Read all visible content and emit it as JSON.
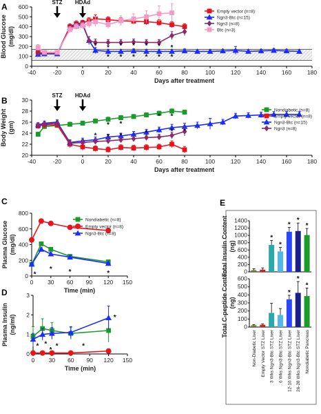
{
  "chart_data": [
    {
      "panel": "A",
      "type": "line",
      "xlabel": "Days after treatment",
      "ylabel": "Blood Glucose (mg/dl)",
      "xlim": [
        -40,
        180
      ],
      "ylim": [
        0,
        600
      ],
      "xticks": [
        -40,
        -20,
        0,
        20,
        40,
        60,
        80,
        100,
        120,
        140,
        160,
        180
      ],
      "yticks": [
        0,
        100,
        200,
        300,
        400,
        500,
        600
      ],
      "annotations": [
        {
          "label": "STZ",
          "x": -20
        },
        {
          "label": "HDAd",
          "x": 0
        }
      ],
      "reference_lines_y": [
        60,
        170
      ],
      "legend_position": "top-right",
      "stars": [
        {
          "x": 10,
          "y": 215
        },
        {
          "x": 20,
          "y": 195
        },
        {
          "x": 30,
          "y": 215
        },
        {
          "x": 40,
          "y": 215
        },
        {
          "x": 50,
          "y": 215
        },
        {
          "x": 60,
          "y": 210
        },
        {
          "x": 70,
          "y": 195
        },
        {
          "x": 20,
          "y": 100
        },
        {
          "x": 30,
          "y": 100
        },
        {
          "x": 40,
          "y": 100
        },
        {
          "x": 50,
          "y": 100
        },
        {
          "x": 60,
          "y": 100
        },
        {
          "x": 70,
          "y": 100
        }
      ],
      "series": [
        {
          "name": "Empty vector (n=8)",
          "color": "#e8141c",
          "marker": "square",
          "x": [
            -35,
            -30,
            -20,
            -10,
            -5,
            0,
            5,
            10,
            20,
            30,
            40,
            50,
            60,
            70,
            80
          ],
          "y": [
            140,
            130,
            130,
            400,
            430,
            440,
            460,
            480,
            470,
            460,
            455,
            450,
            440,
            420,
            400
          ],
          "err": [
            20,
            15,
            15,
            30,
            30,
            25,
            30,
            40,
            30,
            30,
            30,
            30,
            30,
            30,
            30
          ]
        },
        {
          "name": "Ngn3-Btc (n=15)",
          "color": "#1a2cff",
          "marker": "triangle",
          "x": [
            -35,
            -30,
            -20,
            -10,
            -5,
            0,
            5,
            10,
            20,
            30,
            40,
            50,
            60,
            70,
            80,
            90,
            100,
            110,
            120,
            130,
            140,
            150,
            160,
            170
          ],
          "y": [
            120,
            125,
            125,
            390,
            410,
            420,
            260,
            160,
            150,
            150,
            155,
            150,
            150,
            150,
            155,
            150,
            150,
            155,
            160,
            150,
            155,
            160,
            155,
            150
          ],
          "err": [
            15,
            15,
            15,
            30,
            30,
            25,
            40,
            30,
            20,
            20,
            20,
            20,
            20,
            20,
            20,
            15,
            15,
            15,
            40,
            15,
            15,
            20,
            15,
            15
          ]
        },
        {
          "name": "Ngn3 (n=8)",
          "color": "#8b2a6b",
          "marker": "diamond",
          "x": [
            -35,
            -30,
            -20,
            -10,
            -5,
            0,
            5,
            10,
            20,
            30,
            40,
            50,
            60,
            70,
            80
          ],
          "y": [
            130,
            130,
            130,
            390,
            420,
            430,
            260,
            240,
            240,
            240,
            245,
            240,
            240,
            310,
            350
          ],
          "err": [
            15,
            15,
            15,
            30,
            30,
            25,
            40,
            35,
            30,
            30,
            30,
            30,
            30,
            40,
            40
          ]
        },
        {
          "name": "Btc (n=3)",
          "color": "#f49ac8",
          "marker": "square",
          "x": [
            -35,
            -30,
            -20,
            -10,
            -5,
            0,
            5,
            10,
            20,
            30,
            40,
            50,
            60,
            70
          ],
          "y": [
            190,
            140,
            140,
            370,
            400,
            410,
            430,
            450,
            420,
            460,
            480,
            500,
            530,
            540
          ],
          "err": [
            30,
            20,
            20,
            30,
            30,
            30,
            40,
            50,
            40,
            50,
            50,
            60,
            80,
            90
          ]
        }
      ]
    },
    {
      "panel": "B",
      "type": "line",
      "xlabel": "Days after treatment",
      "ylabel": "Body Weight (gm)",
      "xlim": [
        -40,
        180
      ],
      "ylim": [
        20,
        30
      ],
      "xticks": [
        -40,
        -20,
        0,
        20,
        40,
        60,
        80,
        100,
        120,
        140,
        160,
        180
      ],
      "yticks": [
        20,
        22,
        24,
        26,
        28,
        30
      ],
      "annotations": [
        {
          "label": "STZ",
          "x": -20
        },
        {
          "label": "HDAd",
          "x": 0
        }
      ],
      "legend_position": "right",
      "stars": [
        {
          "x": 10,
          "y": 23.7
        },
        {
          "x": 20,
          "y": 23.5
        },
        {
          "x": 30,
          "y": 23.7
        },
        {
          "x": 50,
          "y": 24.2
        },
        {
          "x": 70,
          "y": 24.5
        },
        {
          "x": 80,
          "y": 24.5
        },
        {
          "x": 20,
          "y": 25.6
        },
        {
          "x": 30,
          "y": 25.8
        },
        {
          "x": 60,
          "y": 27.2
        },
        {
          "x": 70,
          "y": 27.2
        }
      ],
      "series": [
        {
          "name": "Nondiabetic (n=8)",
          "color": "#1a9a2a",
          "marker": "square",
          "x": [
            -35,
            -30,
            -20,
            -10,
            0,
            10,
            20,
            30,
            40,
            50,
            60,
            70,
            80
          ],
          "y": [
            23.8,
            25.2,
            25.4,
            25.6,
            25.8,
            26.2,
            26.5,
            26.8,
            27,
            27.3,
            27.6,
            28,
            27.8
          ],
          "err": [
            0.4,
            0.4,
            0.4,
            0.4,
            0.4,
            0.4,
            0.4,
            0.4,
            0.4,
            0.4,
            0.4,
            0.4,
            0.4
          ]
        },
        {
          "name": "Empty vector (n=8)",
          "color": "#e8141c",
          "marker": "square",
          "x": [
            -35,
            -30,
            -20,
            -10,
            0,
            10,
            20,
            30,
            40,
            50,
            60,
            70,
            80
          ],
          "y": [
            25.3,
            25.5,
            25.5,
            22,
            21.5,
            21.2,
            21,
            21.4,
            21.3,
            21.4,
            21.5,
            22,
            21
          ],
          "err": [
            0.5,
            0.5,
            0.5,
            0.6,
            0.6,
            0.5,
            0.5,
            0.5,
            0.5,
            0.5,
            0.5,
            0.6,
            0.6
          ]
        },
        {
          "name": "Ngn3-Btc (n=15)",
          "color": "#1a2cff",
          "marker": "triangle",
          "x": [
            -35,
            -30,
            -20,
            -10,
            0,
            10,
            20,
            30,
            40,
            50,
            60,
            70,
            80,
            90,
            100,
            110,
            120,
            130,
            140,
            150,
            160,
            170
          ],
          "y": [
            25.5,
            25.8,
            26,
            22.3,
            22.6,
            22.8,
            23.3,
            23.5,
            23.8,
            24.2,
            24.6,
            25,
            25.2,
            25.4,
            25.7,
            26,
            27.1,
            27.2,
            27.3,
            27.4,
            27.4,
            27.4
          ],
          "err": [
            0.4,
            0.4,
            0.4,
            0.5,
            0.5,
            0.5,
            0.5,
            0.5,
            0.5,
            0.5,
            0.5,
            0.6,
            0.6,
            0.6,
            1.0,
            0.5,
            0.5,
            0.5,
            0.5,
            0.5,
            0.5,
            0.5
          ]
        },
        {
          "name": "Ngn3 (n=8)",
          "color": "#8b2a6b",
          "marker": "diamond",
          "x": [
            -35,
            -30,
            -20,
            -10,
            0,
            10,
            20,
            30,
            40,
            50,
            60,
            70,
            80
          ],
          "y": [
            25.4,
            25.6,
            25.8,
            22.2,
            22.3,
            22.5,
            22.6,
            22.8,
            23,
            23.2,
            23.3,
            23.6,
            24.3
          ],
          "err": [
            0.4,
            0.4,
            0.4,
            0.5,
            0.5,
            0.5,
            0.5,
            0.5,
            0.5,
            0.5,
            0.5,
            0.6,
            0.8
          ]
        }
      ]
    },
    {
      "panel": "C",
      "type": "line",
      "xlabel": "Time (min)",
      "ylabel": "Plasma Glucose (mg/dl)",
      "xlim": [
        0,
        150
      ],
      "ylim": [
        0,
        800
      ],
      "xticks": [
        0,
        30,
        60,
        90,
        120,
        150
      ],
      "yticks": [
        0,
        200,
        400,
        600,
        800
      ],
      "legend_position": "top-right",
      "stars": [
        {
          "x": 5,
          "y": 30
        },
        {
          "x": 30,
          "y": 95
        },
        {
          "x": 60,
          "y": 60
        },
        {
          "x": 120,
          "y": 45
        }
      ],
      "series": [
        {
          "name": "Nondiabetic (n=8)",
          "color": "#1a9a2a",
          "marker": "square",
          "x": [
            0,
            15,
            30,
            60,
            120
          ],
          "y": [
            150,
            410,
            340,
            250,
            180
          ],
          "err": [
            15,
            25,
            20,
            15,
            12
          ]
        },
        {
          "name": "Empty vector (n=8)",
          "color": "#e8141c",
          "marker": "circle",
          "x": [
            0,
            15,
            30,
            60,
            120
          ],
          "y": [
            460,
            700,
            670,
            620,
            580
          ],
          "err": [
            20,
            20,
            20,
            20,
            20
          ]
        },
        {
          "name": "Ngn3-Btc (n=8)",
          "color": "#1a2cff",
          "marker": "triangle",
          "x": [
            0,
            15,
            30,
            60,
            120
          ],
          "y": [
            150,
            340,
            280,
            240,
            160
          ],
          "err": [
            15,
            20,
            20,
            15,
            12
          ]
        }
      ]
    },
    {
      "panel": "D",
      "type": "line",
      "xlabel": "Time (min)",
      "ylabel": "Plasma Insulin (ng/ml)",
      "xlim": [
        0,
        150
      ],
      "ylim": [
        0,
        3
      ],
      "xticks": [
        0,
        30,
        60,
        90,
        120,
        150
      ],
      "yticks": [
        0,
        1,
        2,
        3
      ],
      "stars": [
        {
          "x": 7,
          "y": 0.45
        },
        {
          "x": 20,
          "y": 0.55
        },
        {
          "x": 28,
          "y": 0.25
        },
        {
          "x": 38,
          "y": 0.45
        },
        {
          "x": 80,
          "y": 0.45
        },
        {
          "x": 130,
          "y": 1.9
        }
      ],
      "series": [
        {
          "name": "Nondiabetic",
          "color": "#1a9a2a",
          "marker": "square",
          "x": [
            0,
            15,
            30,
            60,
            120
          ],
          "y": [
            0.9,
            1.3,
            1.2,
            1.05,
            1.2
          ],
          "err": [
            0.5,
            0.5,
            0.4,
            0.3,
            0.6
          ]
        },
        {
          "name": "Empty vector",
          "color": "#e8141c",
          "marker": "circle",
          "x": [
            0,
            15,
            30,
            60,
            120
          ],
          "y": [
            0.05,
            0.05,
            0.05,
            0.05,
            0.15
          ],
          "err": [
            0.05,
            0.05,
            0.05,
            0.05,
            0.08
          ]
        },
        {
          "name": "Ngn3-Btc",
          "color": "#1a2cff",
          "marker": "triangle",
          "x": [
            0,
            15,
            30,
            60,
            120
          ],
          "y": [
            0.75,
            1.0,
            1.05,
            1.1,
            1.85
          ],
          "err": [
            0.3,
            0.3,
            0.3,
            0.3,
            0.6
          ]
        }
      ]
    },
    {
      "panel": "E",
      "type": "bar",
      "categories": [
        "Non-Diabetic Liver",
        "Empty Vector STZ Liver",
        "3 Wks Ngn3-Btc STZ Liver",
        "6 Wks Ngn3-Btc STZ Liver",
        "12-16 Wks Ngn3-Btc STZ Liver",
        "26-28 Wks Ngn3-Btc STZ Liver",
        "Nondiabetic Pancreas"
      ],
      "colors": [
        "#6b7a2a",
        "#d21f1f",
        "#2aa7a7",
        "#4fb8ec",
        "#2c48ff",
        "#1a1f8c",
        "#1a9a2a"
      ],
      "charts": [
        {
          "ylabel": "Total Insulin Content (ng)",
          "ylim": [
            0,
            1400
          ],
          "yticks": [
            0,
            200,
            400,
            600,
            800,
            1000,
            1200,
            1400
          ],
          "values": [
            45,
            60,
            740,
            560,
            1100,
            1120,
            1010
          ],
          "err": [
            40,
            50,
            120,
            110,
            120,
            220,
            180
          ],
          "stars": [
            false,
            false,
            true,
            true,
            true,
            true,
            true
          ]
        },
        {
          "ylabel": "Total C-peptide Content (ng)",
          "ylim": [
            0,
            600
          ],
          "yticks": [
            0,
            100,
            200,
            300,
            400,
            500,
            600
          ],
          "values": [
            22,
            28,
            175,
            150,
            345,
            425,
            385
          ],
          "err": [
            8,
            12,
            120,
            80,
            50,
            140,
            100
          ],
          "stars": [
            false,
            false,
            false,
            false,
            true,
            true,
            true
          ]
        }
      ]
    }
  ]
}
